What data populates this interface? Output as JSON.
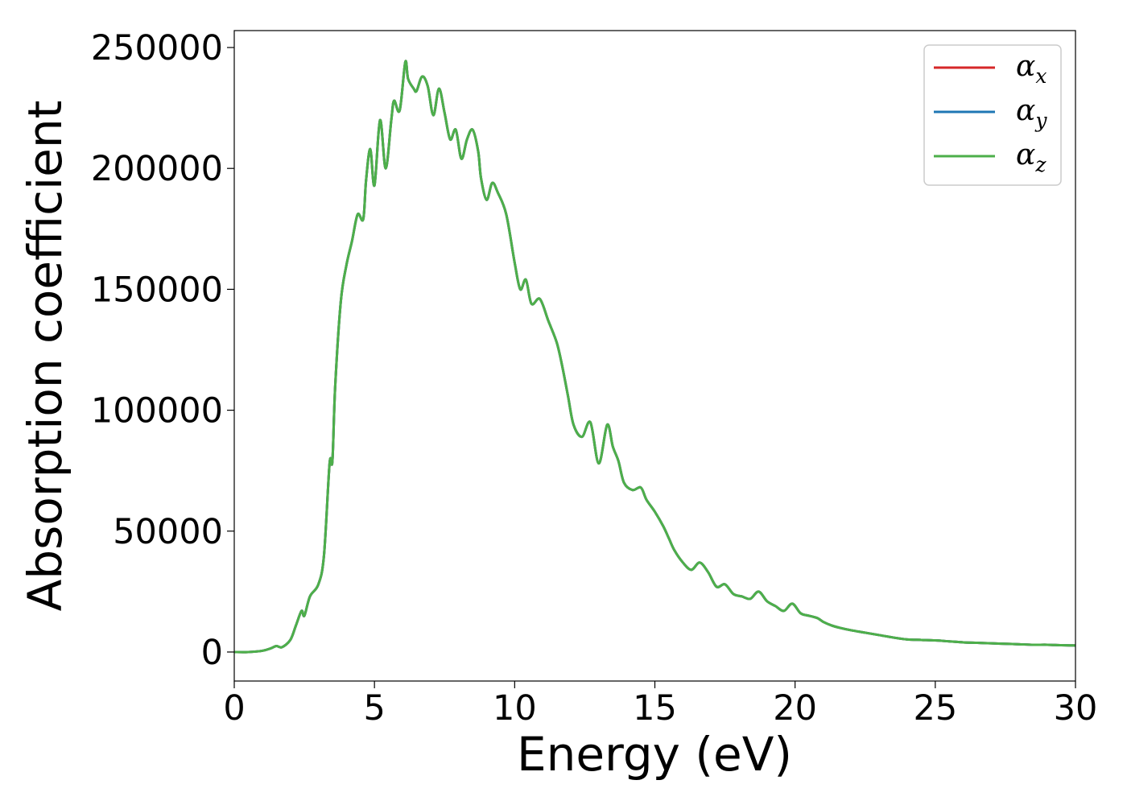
{
  "chart_data": {
    "type": "line",
    "title": "",
    "xlabel": "Energy (eV)",
    "ylabel": "Absorption coefficient",
    "xlim": [
      0,
      30
    ],
    "ylim": [
      -12000,
      257000
    ],
    "x_ticks": [
      0,
      5,
      10,
      15,
      20,
      25,
      30
    ],
    "y_ticks": [
      0,
      50000,
      100000,
      150000,
      200000,
      250000
    ],
    "x_tick_labels": [
      "0",
      "5",
      "10",
      "15",
      "20",
      "25",
      "30"
    ],
    "y_tick_labels": [
      "0",
      "50000",
      "100000",
      "150000",
      "200000",
      "250000"
    ],
    "grid": false,
    "legend_position": "top-right",
    "legend": [
      {
        "symbol": "α",
        "subscript": "x",
        "color": "#d62728"
      },
      {
        "symbol": "α",
        "subscript": "y",
        "color": "#1f77b4"
      },
      {
        "symbol": "α",
        "subscript": "z",
        "color": "#4daf4a"
      }
    ],
    "x": [
      0,
      0.5,
      1.0,
      1.3,
      1.5,
      1.7,
      2.0,
      2.2,
      2.4,
      2.5,
      2.7,
      3.0,
      3.2,
      3.4,
      3.5,
      3.6,
      3.8,
      4.0,
      4.2,
      4.4,
      4.6,
      4.7,
      4.85,
      5.0,
      5.2,
      5.4,
      5.6,
      5.7,
      5.9,
      6.1,
      6.2,
      6.4,
      6.5,
      6.7,
      6.9,
      7.1,
      7.3,
      7.5,
      7.7,
      7.9,
      8.1,
      8.3,
      8.5,
      8.7,
      8.8,
      9.0,
      9.2,
      9.4,
      9.7,
      10.0,
      10.2,
      10.4,
      10.6,
      10.9,
      11.2,
      11.5,
      11.7,
      11.9,
      12.1,
      12.4,
      12.7,
      13.0,
      13.3,
      13.5,
      13.7,
      13.9,
      14.2,
      14.5,
      14.7,
      15.0,
      15.3,
      15.5,
      15.7,
      16.0,
      16.3,
      16.6,
      16.9,
      17.2,
      17.5,
      17.8,
      18.1,
      18.4,
      18.7,
      19.0,
      19.3,
      19.6,
      19.9,
      20.2,
      20.5,
      20.8,
      21.0,
      21.3,
      21.6,
      22.0,
      22.5,
      23.0,
      23.5,
      24.0,
      24.5,
      25.0,
      25.5,
      26.0,
      26.5,
      27.0,
      27.5,
      28.0,
      28.5,
      29.0,
      29.5,
      30.0
    ],
    "series": [
      {
        "name": "α_x",
        "color": "#d62728",
        "values": [
          0,
          0,
          500,
          1500,
          2500,
          2000,
          5000,
          11000,
          17000,
          15000,
          23000,
          28000,
          40000,
          78000,
          79000,
          110000,
          145000,
          160000,
          170000,
          181000,
          179000,
          195000,
          208000,
          193000,
          220000,
          200000,
          220000,
          228000,
          224000,
          244000,
          237000,
          233000,
          232000,
          238000,
          234000,
          222000,
          233000,
          223000,
          212000,
          216000,
          204000,
          212000,
          216000,
          207000,
          196000,
          187000,
          194000,
          190000,
          181000,
          161000,
          150000,
          154000,
          144000,
          146000,
          137000,
          128000,
          118000,
          106000,
          94000,
          89000,
          95000,
          78000,
          94000,
          85000,
          79000,
          70000,
          67000,
          68000,
          63000,
          58000,
          52000,
          47000,
          42000,
          37000,
          34000,
          37000,
          33000,
          27000,
          28000,
          24000,
          23000,
          22000,
          25000,
          21000,
          19000,
          17000,
          20000,
          16000,
          15000,
          14000,
          12500,
          11000,
          10000,
          9000,
          8000,
          7000,
          6000,
          5200,
          5000,
          4800,
          4400,
          4000,
          3800,
          3600,
          3400,
          3200,
          3000,
          3000,
          2800,
          2700
        ]
      },
      {
        "name": "α_y",
        "color": "#1f77b4",
        "values": [
          0,
          0,
          500,
          1500,
          2500,
          2000,
          5000,
          11000,
          17000,
          15000,
          23000,
          28000,
          40000,
          78000,
          79000,
          110000,
          145000,
          160000,
          170000,
          181000,
          179000,
          195000,
          208000,
          193000,
          220000,
          200000,
          220000,
          228000,
          224000,
          244000,
          237000,
          233000,
          232000,
          238000,
          234000,
          222000,
          233000,
          223000,
          212000,
          216000,
          204000,
          212000,
          216000,
          207000,
          196000,
          187000,
          194000,
          190000,
          181000,
          161000,
          150000,
          154000,
          144000,
          146000,
          137000,
          128000,
          118000,
          106000,
          94000,
          89000,
          95000,
          78000,
          94000,
          85000,
          79000,
          70000,
          67000,
          68000,
          63000,
          58000,
          52000,
          47000,
          42000,
          37000,
          34000,
          37000,
          33000,
          27000,
          28000,
          24000,
          23000,
          22000,
          25000,
          21000,
          19000,
          17000,
          20000,
          16000,
          15000,
          14000,
          12500,
          11000,
          10000,
          9000,
          8000,
          7000,
          6000,
          5200,
          5000,
          4800,
          4400,
          4000,
          3800,
          3600,
          3400,
          3200,
          3000,
          3000,
          2800,
          2700
        ]
      },
      {
        "name": "α_z",
        "color": "#4daf4a",
        "values": [
          0,
          0,
          500,
          1500,
          2500,
          2000,
          5000,
          11000,
          17000,
          15000,
          23000,
          28000,
          40000,
          78000,
          79000,
          110000,
          145000,
          160000,
          170000,
          181000,
          179000,
          195000,
          208000,
          193000,
          220000,
          200000,
          220000,
          228000,
          224000,
          244000,
          237000,
          233000,
          232000,
          238000,
          234000,
          222000,
          233000,
          223000,
          212000,
          216000,
          204000,
          212000,
          216000,
          207000,
          196000,
          187000,
          194000,
          190000,
          181000,
          161000,
          150000,
          154000,
          144000,
          146000,
          137000,
          128000,
          118000,
          106000,
          94000,
          89000,
          95000,
          78000,
          94000,
          85000,
          79000,
          70000,
          67000,
          68000,
          63000,
          58000,
          52000,
          47000,
          42000,
          37000,
          34000,
          37000,
          33000,
          27000,
          28000,
          24000,
          23000,
          22000,
          25000,
          21000,
          19000,
          17000,
          20000,
          16000,
          15000,
          14000,
          12500,
          11000,
          10000,
          9000,
          8000,
          7000,
          6000,
          5200,
          5000,
          4800,
          4400,
          4000,
          3800,
          3600,
          3400,
          3200,
          3000,
          3000,
          2800,
          2700
        ]
      }
    ]
  }
}
